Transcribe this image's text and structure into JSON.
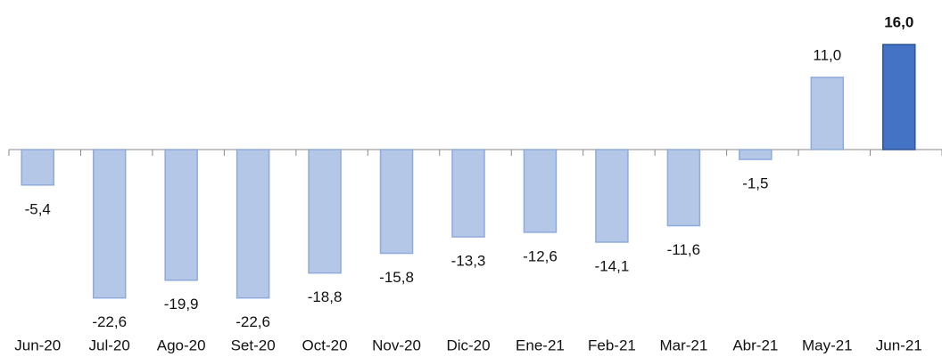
{
  "chart_data": {
    "type": "bar",
    "categories": [
      "Jun-20",
      "Jul-20",
      "Ago-20",
      "Set-20",
      "Oct-20",
      "Nov-20",
      "Dic-20",
      "Ene-21",
      "Feb-21",
      "Mar-21",
      "Abr-21",
      "May-21",
      "Jun-21"
    ],
    "values": [
      -5.4,
      -22.6,
      -19.9,
      -22.6,
      -18.8,
      -15.8,
      -13.3,
      -12.6,
      -14.1,
      -11.6,
      -1.5,
      11.0,
      16.0
    ],
    "value_labels": [
      "-5,4",
      "-22,6",
      "-19,9",
      "-22,6",
      "-18,8",
      "-15,8",
      "-13,3",
      "-12,6",
      "-14,1",
      "-11,6",
      "-1,5",
      "11,0",
      "16,0"
    ],
    "colors": [
      "#b4c7e7",
      "#b4c7e7",
      "#b4c7e7",
      "#b4c7e7",
      "#b4c7e7",
      "#b4c7e7",
      "#b4c7e7",
      "#b4c7e7",
      "#b4c7e7",
      "#b4c7e7",
      "#b4c7e7",
      "#b4c7e7",
      "#4472c4"
    ],
    "highlight_color": "#4472c4",
    "ylim": [
      -28,
      22
    ]
  }
}
